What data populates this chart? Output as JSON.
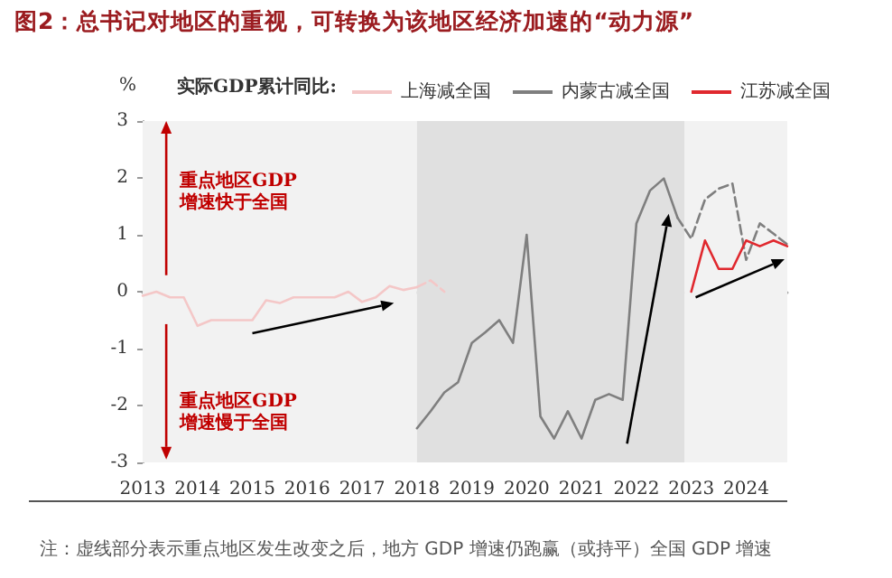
{
  "chart_data": {
    "type": "line",
    "title": "图2：总书记对地区的重视，可转换为该地区经济加速的“动力源”",
    "ylabel": "%",
    "legend_title": "实际GDP累计同比:",
    "legend": "top",
    "marker": "none",
    "xlim": [
      2013,
      2024.75
    ],
    "xticks": [
      2013,
      2014,
      2015,
      2016,
      2017,
      2018,
      2019,
      2020,
      2021,
      2022,
      2023,
      2024
    ],
    "ylim": [
      -3,
      3
    ],
    "yticks": [
      -3,
      -2,
      -1,
      0,
      1,
      2,
      3
    ],
    "bands": [
      {
        "axis": "x",
        "from": 2013,
        "to": 2018,
        "color": "#f2f2f2"
      },
      {
        "axis": "x",
        "from": 2018,
        "to": 2022.875,
        "color": "#e0e0e0"
      },
      {
        "axis": "x",
        "from": 2022.875,
        "to": 2024.75,
        "color": "#f2f2f2"
      }
    ],
    "annotations": [
      "重点地区GDP\n增速快于全国",
      "重点地区GDP\n增速慢于全国",
      "注：虚线部分表示重点地区发生改变之后，地方 GDP 增速仍跑赢（或持平）全国 GDP 增速"
    ],
    "series": [
      {
        "name": "上海减全国",
        "color": "#f4c7c7",
        "x": [
          2013,
          2013.25,
          2013.5,
          2013.75,
          2014,
          2014.25,
          2014.5,
          2014.75,
          2015,
          2015.25,
          2015.5,
          2015.75,
          2016,
          2016.25,
          2016.5,
          2016.75,
          2017,
          2017.25,
          2017.5,
          2017.75,
          2018
        ],
        "values": [
          -0.07,
          0,
          -0.1,
          -0.1,
          -0.6,
          -0.5,
          -0.5,
          -0.5,
          -0.5,
          -0.15,
          -0.2,
          -0.1,
          -0.1,
          -0.1,
          -0.1,
          0,
          -0.18,
          -0.1,
          0.1,
          0.03,
          0.08
        ]
      },
      {
        "color": "#f4c7c7",
        "line_style": "dashed",
        "x": [
          2018,
          2018.25,
          2018.5
        ],
        "values": [
          0.08,
          0.2,
          0
        ]
      },
      {
        "name": "内蒙古减全国",
        "color": "#7f7f7f",
        "x": [
          2018,
          2018.25,
          2018.5,
          2018.75,
          2019,
          2019.25,
          2019.5,
          2019.75,
          2020,
          2020.25,
          2020.5,
          2020.75,
          2021,
          2021.25,
          2021.5,
          2021.75,
          2022,
          2022.25,
          2022.5,
          2022.75
        ],
        "values": [
          -2.4,
          -2.1,
          -1.77,
          -1.59,
          -0.9,
          -0.71,
          -0.5,
          -0.9,
          1.0,
          -2.19,
          -2.58,
          -2.1,
          -2.58,
          -1.9,
          -1.8,
          -1.9,
          1.2,
          1.78,
          1.99,
          1.3
        ]
      },
      {
        "color": "#7f7f7f",
        "line_style": "dashed",
        "x": [
          2022.75,
          2023,
          2023.25,
          2023.5,
          2023.75,
          2024,
          2024.25,
          2024.5,
          2024.75
        ],
        "values": [
          1.3,
          0.93,
          1.62,
          1.81,
          1.9,
          0.56,
          1.2,
          1.02,
          0.83
        ]
      },
      {
        "name": "江苏减全国",
        "color": "#e0282e",
        "x": [
          2023,
          2023.25,
          2023.5,
          2023.75,
          2024,
          2024.25,
          2024.5,
          2024.75
        ],
        "values": [
          0,
          0.9,
          0.4,
          0.4,
          0.9,
          0.8,
          0.9,
          0.8
        ]
      }
    ]
  }
}
